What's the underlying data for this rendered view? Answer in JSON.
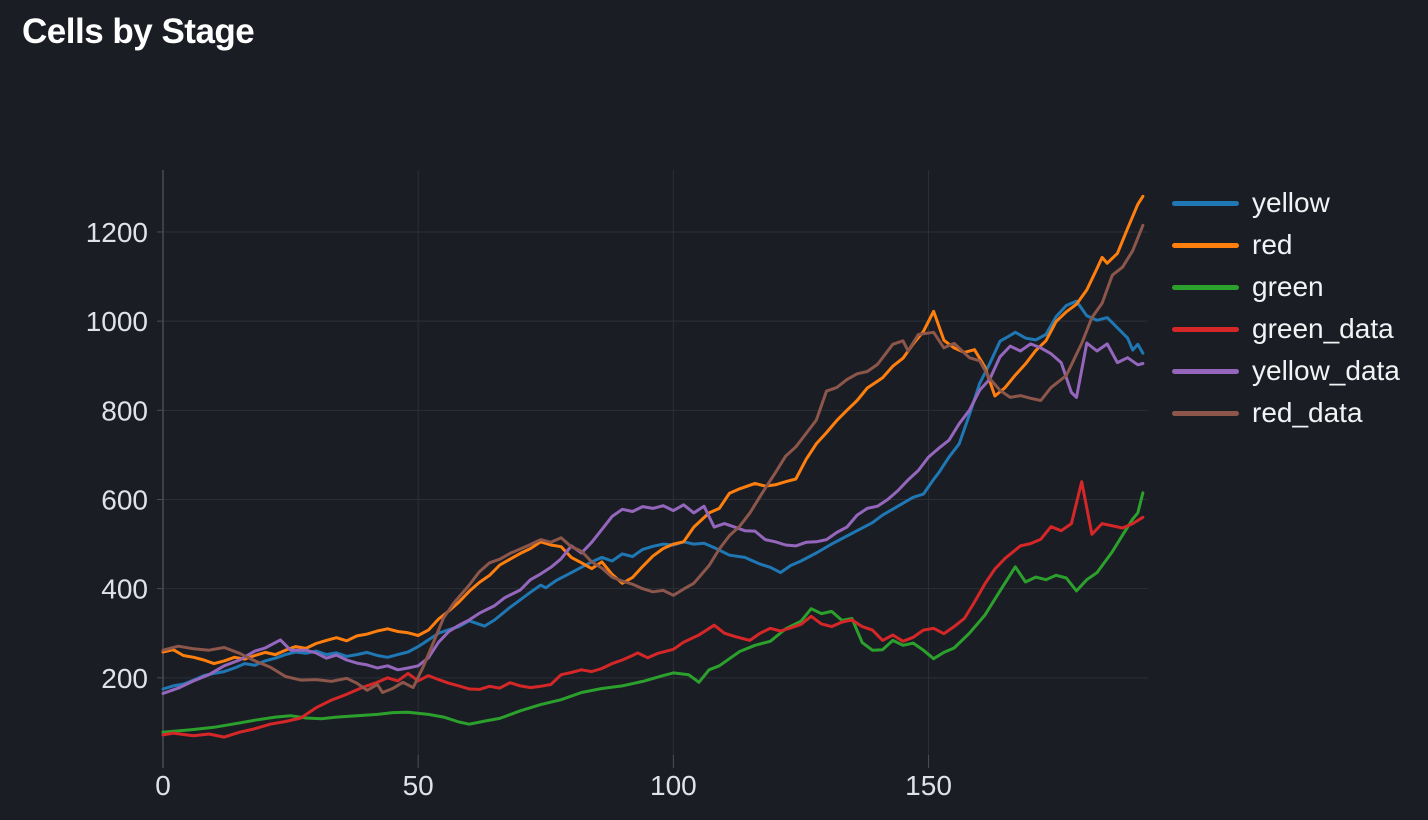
{
  "title": "Cells by Stage",
  "theme": {
    "background": "#1a1d24",
    "grid_color": "#2c2f37",
    "axis_color": "#4a4d55",
    "tick_label_color": "#dfe3e8",
    "legend_text_color": "#f2f3f5",
    "title_color": "#ffffff"
  },
  "legend": {
    "position": "right",
    "items": [
      {
        "label": "yellow",
        "color": "#1f77b4"
      },
      {
        "label": "red",
        "color": "#ff7f0e"
      },
      {
        "label": "green",
        "color": "#2ca02c"
      },
      {
        "label": "green_data",
        "color": "#d62728"
      },
      {
        "label": "yellow_data",
        "color": "#9467bd"
      },
      {
        "label": "red_data",
        "color": "#8c564b"
      }
    ]
  },
  "chart_data": {
    "type": "line",
    "title": "Cells by Stage",
    "xlabel": "",
    "ylabel": "",
    "xlim": [
      0,
      193
    ],
    "ylim": [
      0,
      1339
    ],
    "xticks": [
      0,
      50,
      100,
      150
    ],
    "yticks": [
      200,
      400,
      600,
      800,
      1000,
      1200
    ],
    "grid": true,
    "legend_position": "right",
    "series": [
      {
        "name": "yellow",
        "color": "#1f77b4",
        "x": [
          0,
          2,
          4,
          6,
          8,
          10,
          12,
          14,
          16,
          18,
          20,
          22,
          24,
          26,
          28,
          30,
          32,
          34,
          36,
          38,
          40,
          42,
          44,
          46,
          48,
          50,
          52,
          54,
          56,
          58,
          60,
          62,
          63,
          65,
          68,
          70,
          72,
          74,
          75,
          77,
          79,
          81,
          84,
          86,
          88,
          90,
          92,
          94,
          96,
          98,
          100,
          102,
          104,
          106,
          108,
          111,
          114,
          117,
          119,
          121,
          123,
          125,
          128,
          131,
          134,
          136,
          139,
          141,
          144,
          147,
          149,
          151,
          152,
          154,
          156,
          158,
          160,
          162,
          164,
          166,
          167,
          169,
          171,
          173,
          175,
          177,
          179,
          181,
          183,
          185,
          187,
          189,
          190,
          191,
          192
        ],
        "y": [
          175,
          182,
          186,
          195,
          205,
          210,
          214,
          222,
          232,
          228,
          238,
          244,
          252,
          258,
          255,
          260,
          252,
          256,
          248,
          252,
          257,
          250,
          246,
          252,
          258,
          270,
          285,
          300,
          308,
          315,
          328,
          320,
          316,
          330,
          358,
          375,
          392,
          408,
          402,
          418,
          430,
          442,
          460,
          470,
          462,
          478,
          472,
          488,
          495,
          500,
          498,
          505,
          500,
          502,
          492,
          475,
          470,
          455,
          448,
          436,
          452,
          462,
          480,
          500,
          518,
          530,
          548,
          565,
          585,
          605,
          612,
          645,
          660,
          695,
          725,
          790,
          860,
          905,
          955,
          968,
          975,
          962,
          958,
          970,
          1010,
          1035,
          1045,
          1012,
          1002,
          1008,
          985,
          962,
          935,
          948,
          928
        ]
      },
      {
        "name": "red",
        "color": "#ff7f0e",
        "x": [
          0,
          2,
          4,
          6,
          8,
          10,
          12,
          14,
          16,
          18,
          20,
          22,
          24,
          26,
          28,
          30,
          32,
          34,
          36,
          38,
          40,
          42,
          44,
          46,
          48,
          50,
          52,
          54,
          56,
          58,
          60,
          62,
          64,
          66,
          68,
          70,
          72,
          74,
          76,
          78,
          80,
          82,
          84,
          86,
          88,
          90,
          92,
          94,
          96,
          98,
          100,
          102,
          104,
          107,
          109,
          111,
          113,
          116,
          118,
          120,
          122,
          124,
          126,
          128,
          130,
          132,
          134,
          136,
          138,
          141,
          143,
          145,
          147,
          149,
          151,
          153,
          155,
          157,
          159,
          161,
          163,
          165,
          167,
          169,
          171,
          173,
          175,
          177,
          179,
          181,
          183,
          184,
          185,
          187,
          189,
          191,
          192
        ],
        "y": [
          258,
          263,
          250,
          246,
          240,
          232,
          238,
          246,
          242,
          250,
          257,
          252,
          262,
          270,
          266,
          277,
          284,
          290,
          283,
          294,
          298,
          305,
          310,
          304,
          301,
          295,
          307,
          332,
          350,
          370,
          394,
          414,
          430,
          453,
          466,
          479,
          490,
          505,
          498,
          494,
          470,
          458,
          445,
          460,
          432,
          412,
          425,
          450,
          473,
          490,
          500,
          505,
          538,
          570,
          580,
          614,
          624,
          636,
          630,
          633,
          640,
          646,
          690,
          725,
          750,
          777,
          800,
          822,
          850,
          873,
          899,
          917,
          949,
          977,
          1022,
          957,
          940,
          930,
          936,
          898,
          832,
          851,
          879,
          904,
          934,
          956,
          999,
          1021,
          1038,
          1070,
          1118,
          1143,
          1130,
          1152,
          1208,
          1262,
          1280
        ]
      },
      {
        "name": "green",
        "color": "#2ca02c",
        "x": [
          0,
          3,
          6,
          10,
          14,
          18,
          22,
          25,
          28,
          31,
          34,
          38,
          42,
          45,
          48,
          52,
          55,
          58,
          60,
          63,
          66,
          70,
          74,
          78,
          82,
          86,
          90,
          94,
          98,
          100,
          103,
          105,
          107,
          109,
          113,
          116,
          119,
          122,
          125,
          127,
          129,
          131,
          133,
          135,
          137,
          139,
          141,
          143,
          145,
          147,
          149,
          151,
          153,
          155,
          158,
          161,
          164,
          167,
          169,
          171,
          173,
          175,
          177,
          179,
          181,
          183,
          186,
          188,
          190,
          191,
          192
        ],
        "y": [
          78,
          81,
          84,
          89,
          97,
          105,
          112,
          115,
          110,
          108,
          112,
          115,
          118,
          122,
          123,
          118,
          112,
          101,
          96,
          103,
          109,
          126,
          140,
          151,
          167,
          176,
          182,
          192,
          205,
          211,
          207,
          190,
          218,
          227,
          259,
          273,
          282,
          310,
          327,
          355,
          344,
          349,
          329,
          333,
          279,
          262,
          263,
          284,
          273,
          278,
          262,
          243,
          257,
          267,
          300,
          340,
          395,
          449,
          415,
          426,
          420,
          430,
          424,
          395,
          420,
          436,
          483,
          520,
          556,
          570,
          615
        ]
      },
      {
        "name": "green_data",
        "color": "#d62728",
        "x": [
          0,
          2,
          4,
          6,
          9,
          12,
          15,
          18,
          21,
          24,
          27,
          30,
          33,
          36,
          39,
          42,
          44,
          46,
          48,
          50,
          52,
          54,
          56,
          58,
          60,
          62,
          64,
          66,
          68,
          70,
          72,
          74,
          76,
          78,
          80,
          82,
          84,
          86,
          88,
          90,
          92,
          93,
          95,
          97,
          100,
          102,
          105,
          108,
          110,
          112,
          115,
          117,
          119,
          121,
          123,
          125,
          127,
          129,
          131,
          133,
          135,
          137,
          139,
          141,
          143,
          145,
          147,
          149,
          151,
          153,
          155,
          157,
          159,
          161,
          163,
          165,
          168,
          170,
          172,
          174,
          176,
          178,
          180,
          182,
          184,
          186,
          188,
          190,
          192
        ],
        "y": [
          72,
          76,
          73,
          70,
          74,
          67,
          78,
          86,
          96,
          102,
          110,
          133,
          150,
          163,
          178,
          190,
          200,
          193,
          210,
          193,
          205,
          196,
          188,
          182,
          175,
          174,
          181,
          177,
          189,
          182,
          178,
          181,
          185,
          207,
          212,
          218,
          214,
          221,
          232,
          240,
          250,
          256,
          245,
          255,
          264,
          280,
          296,
          318,
          300,
          293,
          284,
          300,
          311,
          305,
          312,
          320,
          338,
          321,
          315,
          325,
          330,
          315,
          307,
          284,
          296,
          282,
          291,
          307,
          311,
          299,
          315,
          333,
          370,
          410,
          444,
          468,
          496,
          501,
          511,
          539,
          530,
          546,
          640,
          522,
          546,
          541,
          536,
          546,
          560
        ]
      },
      {
        "name": "yellow_data",
        "color": "#9467bd",
        "x": [
          0,
          3,
          6,
          9,
          12,
          15,
          18,
          20,
          23,
          25,
          28,
          30,
          32,
          34,
          36,
          38,
          40,
          42,
          44,
          46,
          48,
          50,
          52,
          54,
          56,
          58,
          60,
          62,
          65,
          67,
          70,
          72,
          74,
          76,
          78,
          80,
          82,
          84,
          86,
          88,
          90,
          92,
          94,
          96,
          98,
          100,
          102,
          104,
          106,
          108,
          110,
          112,
          114,
          116,
          118,
          120,
          122,
          124,
          126,
          128,
          130,
          132,
          134,
          136,
          138,
          140,
          142,
          144,
          146,
          148,
          150,
          152,
          154,
          156,
          158,
          160,
          162,
          164,
          166,
          168,
          170,
          172,
          174,
          176,
          178,
          179,
          181,
          183,
          185,
          187,
          189,
          191,
          192
        ],
        "y": [
          165,
          177,
          193,
          207,
          227,
          240,
          260,
          267,
          285,
          262,
          262,
          256,
          244,
          251,
          240,
          233,
          229,
          222,
          227,
          218,
          222,
          227,
          245,
          280,
          304,
          318,
          330,
          345,
          362,
          380,
          397,
          420,
          433,
          448,
          467,
          496,
          480,
          504,
          533,
          562,
          578,
          573,
          584,
          580,
          586,
          575,
          588,
          570,
          585,
          538,
          546,
          538,
          530,
          529,
          510,
          505,
          498,
          496,
          504,
          505,
          510,
          526,
          538,
          565,
          580,
          585,
          600,
          620,
          644,
          665,
          695,
          715,
          733,
          770,
          800,
          845,
          870,
          920,
          944,
          933,
          949,
          940,
          927,
          907,
          840,
          829,
          951,
          933,
          949,
          907,
          918,
          902,
          905
        ]
      },
      {
        "name": "red_data",
        "color": "#8c564b",
        "x": [
          0,
          3,
          6,
          9,
          12,
          15,
          18,
          21,
          24,
          27,
          30,
          33,
          36,
          38,
          40,
          42,
          43,
          45,
          47,
          49,
          51,
          53,
          55,
          57,
          60,
          62,
          64,
          66,
          68,
          70,
          72,
          74,
          76,
          78,
          80,
          82,
          84,
          86,
          88,
          90,
          92,
          94,
          96,
          98,
          100,
          102,
          104,
          107,
          109,
          111,
          113,
          115,
          117,
          118,
          120,
          122,
          124,
          126,
          128,
          130,
          132,
          134,
          136,
          138,
          140,
          143,
          145,
          146,
          148,
          151,
          153,
          155,
          158,
          160,
          162,
          164,
          166,
          168,
          170,
          172,
          174,
          177,
          180,
          182,
          184,
          186,
          188,
          190,
          192
        ],
        "y": [
          262,
          271,
          265,
          262,
          268,
          255,
          238,
          224,
          203,
          195,
          196,
          192,
          199,
          188,
          172,
          185,
          167,
          176,
          190,
          178,
          225,
          280,
          335,
          368,
          408,
          438,
          458,
          466,
          479,
          489,
          499,
          510,
          504,
          514,
          494,
          484,
          460,
          446,
          426,
          417,
          410,
          400,
          393,
          396,
          385,
          399,
          412,
          452,
          489,
          519,
          540,
          570,
          607,
          625,
          660,
          697,
          718,
          748,
          778,
          843,
          851,
          869,
          882,
          887,
          903,
          948,
          956,
          933,
          970,
          975,
          940,
          950,
          918,
          911,
          871,
          845,
          829,
          833,
          827,
          822,
          851,
          878,
          950,
          1008,
          1040,
          1103,
          1121,
          1158,
          1215
        ]
      }
    ]
  }
}
